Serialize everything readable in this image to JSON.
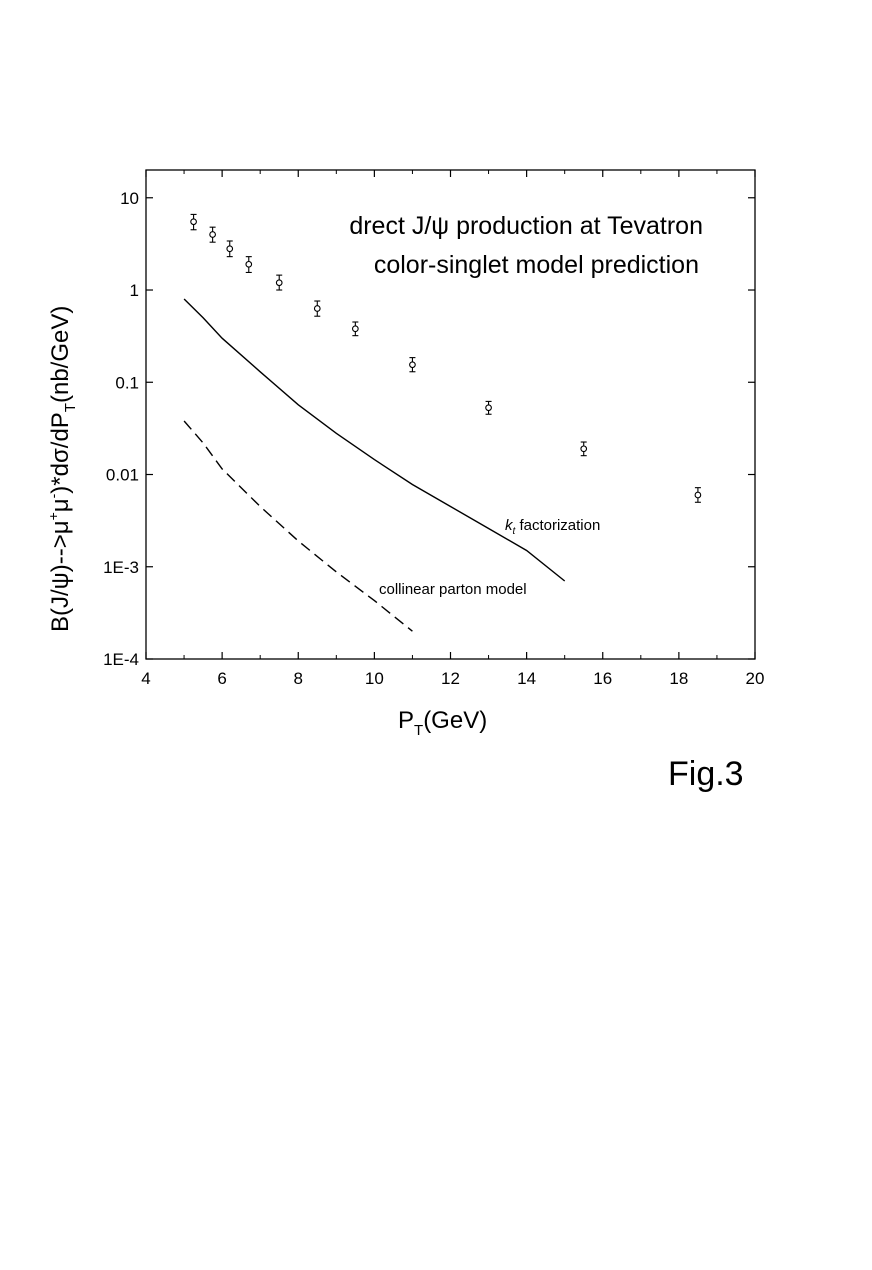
{
  "chart_data": {
    "type": "scatter",
    "title": "drect J/ψ production at Tevatron",
    "subtitle": "color-singlet model prediction",
    "xlabel": {
      "main": "P",
      "sub": "T",
      "rest": "(GeV)"
    },
    "ylabel": {
      "p1": "B(J/ψ)-->μ",
      "sup1": "+",
      "p2": "μ",
      "sup2": "-",
      "p3": ")*dσ/dP",
      "sub": "T",
      "p4": "(nb/GeV)"
    },
    "xlim": [
      4,
      20
    ],
    "ylim": [
      0.0001,
      20
    ],
    "yscale": "log",
    "x_ticks": [
      {
        "v": 4,
        "label": "4"
      },
      {
        "v": 6,
        "label": "6"
      },
      {
        "v": 8,
        "label": "8"
      },
      {
        "v": 10,
        "label": "10"
      },
      {
        "v": 12,
        "label": "12"
      },
      {
        "v": 14,
        "label": "14"
      },
      {
        "v": 16,
        "label": "16"
      },
      {
        "v": 18,
        "label": "18"
      },
      {
        "v": 20,
        "label": "20"
      }
    ],
    "y_ticks": [
      {
        "v": 10,
        "label": "10"
      },
      {
        "v": 1,
        "label": "1"
      },
      {
        "v": 0.1,
        "label": "0.1"
      },
      {
        "v": 0.01,
        "label": "0.01"
      },
      {
        "v": 0.001,
        "label": "1E-3"
      },
      {
        "v": 0.0001,
        "label": "1E-4"
      }
    ],
    "grid": false,
    "data_points": [
      {
        "x": 5.25,
        "y": 5.5,
        "lo": 4.5,
        "hi": 6.6
      },
      {
        "x": 5.75,
        "y": 4.0,
        "lo": 3.3,
        "hi": 4.8
      },
      {
        "x": 6.2,
        "y": 2.8,
        "lo": 2.3,
        "hi": 3.4
      },
      {
        "x": 6.7,
        "y": 1.9,
        "lo": 1.55,
        "hi": 2.3
      },
      {
        "x": 7.5,
        "y": 1.2,
        "lo": 1.0,
        "hi": 1.45
      },
      {
        "x": 8.5,
        "y": 0.63,
        "lo": 0.52,
        "hi": 0.76
      },
      {
        "x": 9.5,
        "y": 0.38,
        "lo": 0.32,
        "hi": 0.45
      },
      {
        "x": 11.0,
        "y": 0.155,
        "lo": 0.13,
        "hi": 0.185
      },
      {
        "x": 13.0,
        "y": 0.053,
        "lo": 0.045,
        "hi": 0.062
      },
      {
        "x": 15.5,
        "y": 0.019,
        "lo": 0.016,
        "hi": 0.0225
      },
      {
        "x": 18.5,
        "y": 0.006,
        "lo": 0.005,
        "hi": 0.0072
      }
    ],
    "series": [
      {
        "style": "solid",
        "points": [
          [
            5,
            0.8
          ],
          [
            5.5,
            0.5
          ],
          [
            6,
            0.3
          ],
          [
            7,
            0.13
          ],
          [
            8,
            0.057
          ],
          [
            9,
            0.028
          ],
          [
            10,
            0.0145
          ],
          [
            11,
            0.0078
          ],
          [
            12,
            0.0045
          ],
          [
            13,
            0.0026
          ],
          [
            14,
            0.0015
          ],
          [
            15,
            0.0007
          ]
        ]
      },
      {
        "style": "dashed",
        "points": [
          [
            5,
            0.038
          ],
          [
            5.5,
            0.022
          ],
          [
            6,
            0.0115
          ],
          [
            7,
            0.0045
          ],
          [
            8,
            0.0019
          ],
          [
            9,
            0.00088
          ],
          [
            10,
            0.00043
          ],
          [
            11,
            0.0002
          ]
        ]
      }
    ],
    "annotations": {
      "kt_main": "k",
      "kt_sub": "t",
      "kt_rest": " factorization",
      "collinear": "collinear parton model"
    },
    "figure_label": "Fig.3"
  }
}
